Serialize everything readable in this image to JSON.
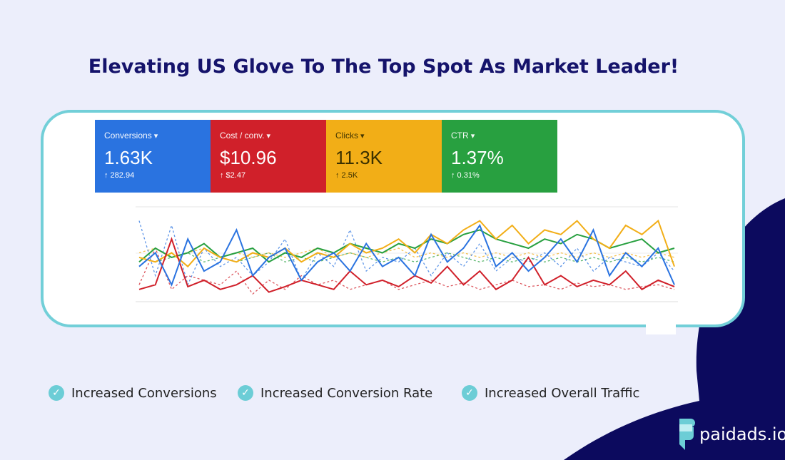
{
  "title": "Elevating US Glove To The Top Spot As Market Leader!",
  "metrics": [
    {
      "label": "Conversions",
      "value": "1.63K",
      "change": "↑ 282.94",
      "color": "#2a73e0"
    },
    {
      "label": "Cost / conv.",
      "value": "$10.96",
      "change": "↑ $2.47",
      "color": "#d0202a"
    },
    {
      "label": "Clicks",
      "value": "11.3K",
      "change": "↑ 2.5K",
      "color": "#f2ae17"
    },
    {
      "label": "CTR",
      "value": "1.37%",
      "change": "↑ 0.31%",
      "color": "#28a040"
    }
  ],
  "chart_data": {
    "type": "line",
    "series": [
      {
        "color": "#2a73e0",
        "style": "solid",
        "values": [
          40,
          55,
          20,
          70,
          35,
          45,
          80,
          30,
          50,
          60,
          25,
          45,
          55,
          35,
          65,
          40,
          50,
          30,
          75,
          45,
          60,
          85,
          40,
          55,
          35,
          50,
          70,
          45,
          80,
          30,
          55,
          40,
          60,
          20
        ]
      },
      {
        "color": "#d0202a",
        "style": "solid",
        "values": [
          15,
          20,
          70,
          18,
          25,
          15,
          20,
          30,
          12,
          18,
          25,
          20,
          15,
          35,
          20,
          25,
          18,
          30,
          22,
          40,
          20,
          35,
          15,
          25,
          50,
          20,
          30,
          18,
          25,
          20,
          35,
          15,
          25,
          18
        ]
      },
      {
        "color": "#f2ae17",
        "style": "solid",
        "values": [
          50,
          45,
          55,
          40,
          60,
          50,
          45,
          55,
          50,
          60,
          45,
          55,
          50,
          65,
          55,
          60,
          70,
          55,
          75,
          65,
          80,
          90,
          70,
          85,
          65,
          80,
          75,
          90,
          70,
          60,
          85,
          75,
          90,
          40
        ]
      },
      {
        "color": "#28a040",
        "style": "solid",
        "values": [
          45,
          60,
          50,
          55,
          65,
          50,
          55,
          60,
          45,
          55,
          50,
          60,
          55,
          65,
          60,
          55,
          65,
          60,
          70,
          65,
          75,
          80,
          70,
          65,
          60,
          70,
          65,
          75,
          70,
          60,
          65,
          70,
          55,
          60
        ]
      },
      {
        "color": "#2a73e0",
        "style": "dashed",
        "values": [
          90,
          30,
          85,
          20,
          60,
          40,
          50,
          30,
          45,
          70,
          25,
          55,
          40,
          80,
          35,
          50,
          45,
          60,
          30,
          55,
          40,
          65,
          35,
          50,
          45,
          55,
          40,
          60,
          35,
          50,
          45,
          40,
          55,
          35
        ]
      },
      {
        "color": "#d0202a",
        "style": "dashed",
        "values": [
          20,
          60,
          15,
          30,
          25,
          20,
          35,
          10,
          25,
          15,
          30,
          20,
          25,
          15,
          20,
          25,
          15,
          20,
          25,
          18,
          22,
          15,
          20,
          25,
          18,
          20,
          15,
          22,
          18,
          20,
          15,
          18,
          20,
          15
        ]
      },
      {
        "color": "#f2ae17",
        "style": "dashed",
        "values": [
          55,
          60,
          50,
          55,
          60,
          50,
          55,
          50,
          55,
          50,
          55,
          60,
          50,
          55,
          50,
          55,
          60,
          50,
          55,
          50,
          55,
          50,
          55,
          50,
          55,
          50,
          55,
          50,
          55,
          50,
          55,
          50,
          55,
          50
        ]
      },
      {
        "color": "#28a040",
        "style": "dashed",
        "values": [
          50,
          45,
          50,
          55,
          45,
          50,
          45,
          50,
          55,
          45,
          50,
          45,
          50,
          55,
          50,
          45,
          50,
          45,
          50,
          55,
          50,
          45,
          50,
          45,
          50,
          45,
          50,
          45,
          50,
          45,
          50,
          45,
          50,
          45
        ]
      }
    ]
  },
  "checks": [
    "Increased Conversions",
    "Increased Conversion Rate",
    "Increased Overall Traffic"
  ],
  "logo": "paidads.io"
}
